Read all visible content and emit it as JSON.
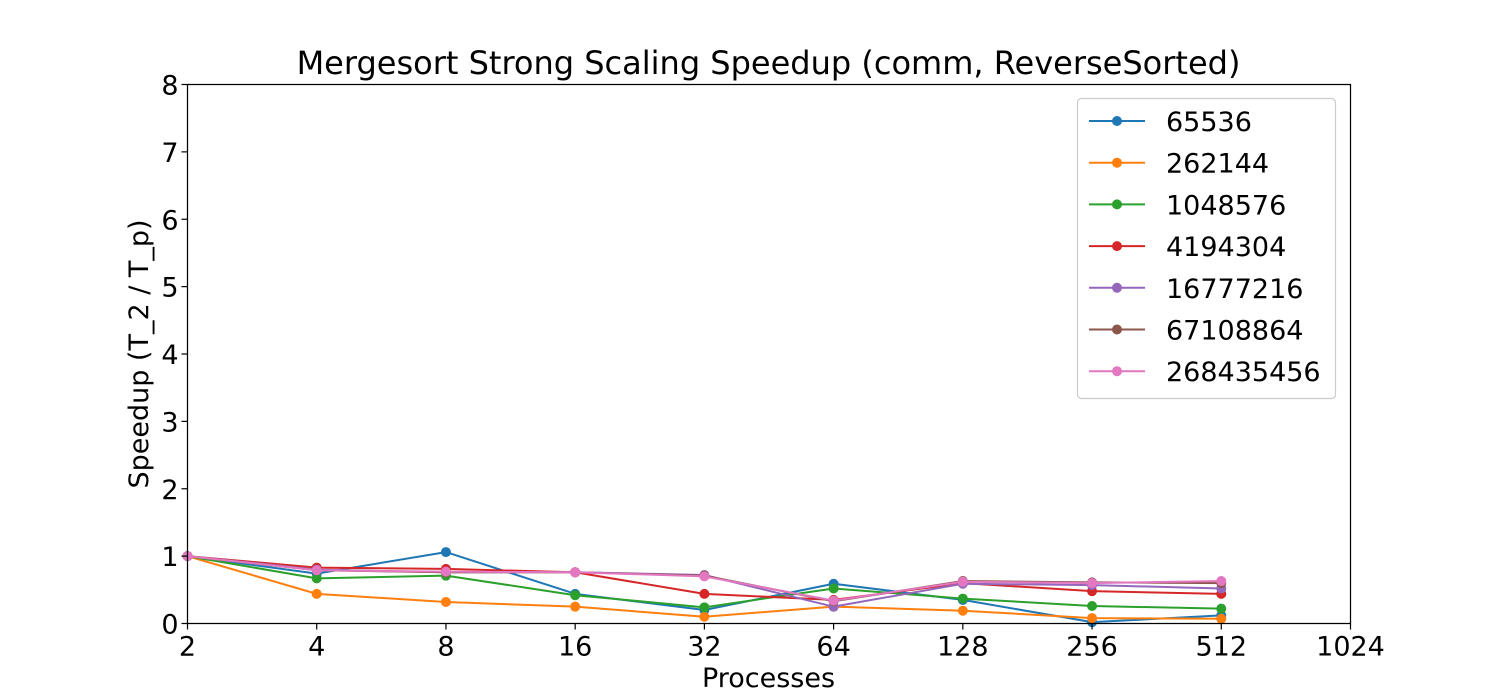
{
  "chart_data": {
    "type": "line",
    "title": "Mergesort Strong Scaling Speedup (comm, ReverseSorted)",
    "xlabel": "Processes",
    "ylabel": "Speedup (T_2 / T_p)",
    "x_scale": "log2",
    "xlim": [
      2,
      1024
    ],
    "ylim": [
      0,
      8
    ],
    "x_ticks": [
      "2",
      "4",
      "8",
      "16",
      "32",
      "64",
      "128",
      "256",
      "512",
      "1024"
    ],
    "y_ticks": [
      "0",
      "1",
      "2",
      "3",
      "4",
      "5",
      "6",
      "7",
      "8"
    ],
    "grid": false,
    "legend_position": "top-right",
    "x": [
      2,
      4,
      8,
      16,
      32,
      64,
      128,
      256,
      512
    ],
    "series": [
      {
        "name": "65536",
        "color": "#1f77b4",
        "values": [
          1.0,
          0.74,
          1.06,
          0.44,
          0.2,
          0.59,
          0.35,
          0.02,
          0.12
        ]
      },
      {
        "name": "262144",
        "color": "#ff7f0e",
        "values": [
          1.0,
          0.44,
          0.32,
          0.25,
          0.1,
          0.25,
          0.19,
          0.08,
          0.07
        ]
      },
      {
        "name": "1048576",
        "color": "#2ca02c",
        "values": [
          1.0,
          0.67,
          0.71,
          0.42,
          0.24,
          0.52,
          0.37,
          0.26,
          0.22
        ]
      },
      {
        "name": "4194304",
        "color": "#d62728",
        "values": [
          1.0,
          0.83,
          0.81,
          0.76,
          0.44,
          0.35,
          0.6,
          0.48,
          0.44
        ]
      },
      {
        "name": "16777216",
        "color": "#9467bd",
        "values": [
          1.0,
          0.8,
          0.76,
          0.76,
          0.72,
          0.25,
          0.59,
          0.57,
          0.52
        ]
      },
      {
        "name": "67108864",
        "color": "#8c564b",
        "values": [
          1.0,
          0.79,
          0.76,
          0.76,
          0.71,
          0.33,
          0.63,
          0.61,
          0.6
        ]
      },
      {
        "name": "268435456",
        "color": "#e377c2",
        "values": [
          1.0,
          0.79,
          0.77,
          0.76,
          0.7,
          0.34,
          0.62,
          0.6,
          0.63
        ]
      }
    ]
  }
}
